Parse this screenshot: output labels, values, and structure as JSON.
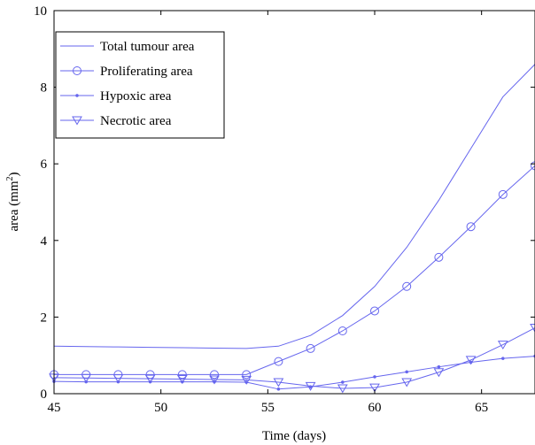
{
  "chart_data": {
    "type": "line",
    "xlabel": "Time (days)",
    "ylabel": "area (mm",
    "ylabel_superscript": "2",
    "ylabel_suffix": ")",
    "xlim": [
      45,
      67.5
    ],
    "ylim": [
      0,
      10
    ],
    "xticks": [
      45,
      50,
      55,
      60,
      65
    ],
    "yticks": [
      0,
      2,
      4,
      6,
      8,
      10
    ],
    "line_color": "#6666ee",
    "legend_position": "top-left",
    "grid": false,
    "series": [
      {
        "name": "Total tumour area",
        "marker": "none",
        "x": [
          45,
          46.5,
          48,
          49.5,
          51,
          52.5,
          54,
          55.5,
          57,
          58.5,
          60,
          61.5,
          63,
          64.5,
          66,
          67.5
        ],
        "y": [
          1.24,
          1.23,
          1.22,
          1.21,
          1.2,
          1.19,
          1.18,
          1.24,
          1.52,
          2.04,
          2.8,
          3.82,
          5.05,
          6.4,
          7.75,
          8.6
        ]
      },
      {
        "name": "Proliferating area",
        "marker": "circle",
        "x": [
          45,
          46.5,
          48,
          49.5,
          51,
          52.5,
          54,
          55.5,
          57,
          58.5,
          60,
          61.5,
          63,
          64.5,
          66,
          67.5
        ],
        "y": [
          0.5,
          0.5,
          0.5,
          0.5,
          0.5,
          0.5,
          0.5,
          0.84,
          1.18,
          1.64,
          2.16,
          2.8,
          3.56,
          4.36,
          5.2,
          5.95
        ]
      },
      {
        "name": "Hypoxic area",
        "marker": "dot",
        "x": [
          45,
          46.5,
          48,
          49.5,
          51,
          52.5,
          54,
          55.5,
          57,
          58.5,
          60,
          61.5,
          63,
          64.5,
          66,
          67.5
        ],
        "y": [
          0.32,
          0.31,
          0.31,
          0.31,
          0.31,
          0.31,
          0.3,
          0.12,
          0.18,
          0.3,
          0.44,
          0.57,
          0.7,
          0.82,
          0.92,
          0.98
        ]
      },
      {
        "name": "Necrotic area",
        "marker": "triangle-down",
        "x": [
          45,
          46.5,
          48,
          49.5,
          51,
          52.5,
          54,
          55.5,
          57,
          58.5,
          60,
          61.5,
          63,
          64.5,
          66,
          67.5
        ],
        "y": [
          0.42,
          0.41,
          0.4,
          0.39,
          0.38,
          0.37,
          0.36,
          0.3,
          0.2,
          0.14,
          0.16,
          0.3,
          0.56,
          0.88,
          1.28,
          1.72
        ]
      }
    ]
  }
}
